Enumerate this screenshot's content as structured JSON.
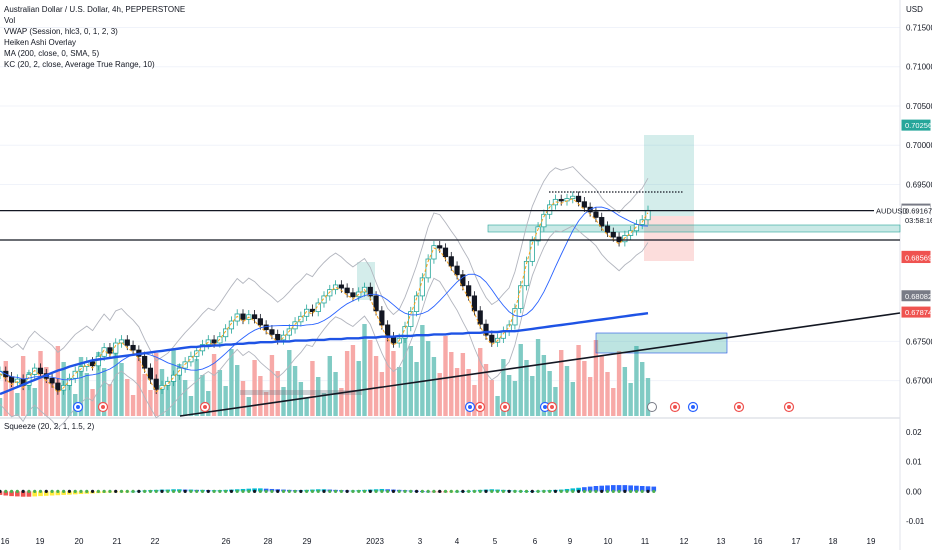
{
  "header": {
    "title": "Australian Dollar / U.S. Dollar, 4h, PEPPERSTONE",
    "indicators": [
      "Vol",
      "VWAP (Session, hlc3, 0, 1, 2, 3)",
      "Heiken Ashi Overlay",
      "MA (200, close, 0, SMA, 5)",
      "KC (20, 2, close, Average True Range, 10)"
    ]
  },
  "squeeze": {
    "title": "Squeeze (20, 2, 1, 1.5, 2)"
  },
  "colors": {
    "up": "#26a69a",
    "down": "#ef5350",
    "ma": "#1e53e5",
    "vwap": "#f7a21b",
    "kc": "#b2b5be",
    "vol_up": "#80cbc4",
    "vol_down": "#f7a9a7"
  },
  "chart_data": {
    "type": "candlestick",
    "currency": "USD",
    "symbol": "AUDUSD",
    "price_ticks": [
      "0.71500",
      "0.71000",
      "0.70500",
      "0.70000",
      "0.69500",
      "0.67500",
      "0.67000"
    ],
    "price_tick_values": [
      0.715,
      0.71,
      0.705,
      0.7,
      0.695,
      0.675,
      0.67
    ],
    "ylim": [
      0.6655,
      0.7185
    ],
    "price_labels": [
      {
        "text": "0.70256",
        "value": 0.70256,
        "color": "#26a69a"
      },
      {
        "text": "0.69186",
        "value": 0.69186,
        "color": "#787b86"
      },
      {
        "text": "0.69167",
        "value": 0.69167,
        "color": "#ffffff"
      },
      {
        "text": "03:58:16",
        "value": 0.6905,
        "color": "#ffffff"
      },
      {
        "text": "0.68584",
        "value": 0.68584,
        "color": "#ef5350"
      },
      {
        "text": "0.68569",
        "value": 0.68569,
        "color": "#ef5350"
      },
      {
        "text": "0.68082",
        "value": 0.68082,
        "color": "#787b86"
      },
      {
        "text": "0.67874",
        "value": 0.67874,
        "color": "#ef5350"
      }
    ],
    "symbol_tag": "AUDUSD",
    "x_ticks": [
      "16",
      "19",
      "20",
      "21",
      "22",
      "26",
      "28",
      "29",
      "2023",
      "3",
      "4",
      "5",
      "6",
      "9",
      "10",
      "11",
      "12",
      "13",
      "16",
      "17",
      "18",
      "19"
    ],
    "close": [
      0.6712,
      0.6705,
      0.6698,
      0.6702,
      0.6694,
      0.6708,
      0.6716,
      0.6709,
      0.6703,
      0.6697,
      0.6688,
      0.6694,
      0.6703,
      0.6712,
      0.6718,
      0.6724,
      0.6719,
      0.6731,
      0.6742,
      0.6735,
      0.6748,
      0.6752,
      0.6745,
      0.6739,
      0.6731,
      0.6716,
      0.6702,
      0.6689,
      0.6694,
      0.6699,
      0.6707,
      0.6716,
      0.6724,
      0.6731,
      0.6738,
      0.6746,
      0.6752,
      0.6748,
      0.6756,
      0.6766,
      0.6776,
      0.6785,
      0.6778,
      0.6784,
      0.6779,
      0.6771,
      0.6765,
      0.6759,
      0.6752,
      0.6758,
      0.6766,
      0.6775,
      0.6782,
      0.6791,
      0.6788,
      0.6799,
      0.6808,
      0.6816,
      0.6822,
      0.6818,
      0.6812,
      0.6807,
      0.6813,
      0.6819,
      0.6808,
      0.6789,
      0.6771,
      0.6756,
      0.6748,
      0.6754,
      0.6769,
      0.6788,
      0.6808,
      0.6831,
      0.6855,
      0.6872,
      0.6869,
      0.6858,
      0.6846,
      0.6835,
      0.6821,
      0.6808,
      0.6789,
      0.6772,
      0.6758,
      0.6749,
      0.6754,
      0.6763,
      0.6771,
      0.6792,
      0.6821,
      0.6852,
      0.6878,
      0.6896,
      0.6912,
      0.6924,
      0.6931,
      0.6929,
      0.6932,
      0.6935,
      0.6928,
      0.6921,
      0.6915,
      0.6908,
      0.6897,
      0.6889,
      0.6883,
      0.6877,
      0.6885,
      0.6891,
      0.6899,
      0.6905,
      0.6917
    ],
    "ma200": [
      0.6683,
      0.6686,
      0.6689,
      0.6692,
      0.6695,
      0.6698,
      0.6701,
      0.6704,
      0.6707,
      0.671,
      0.6713,
      0.6715,
      0.6718,
      0.672,
      0.6722,
      0.6724,
      0.6726,
      0.6727,
      0.6728,
      0.6729,
      0.673,
      0.6731,
      0.6732,
      0.6733,
      0.6734,
      0.6735,
      0.6736,
      0.6737,
      0.6738,
      0.6739,
      0.674,
      0.6741,
      0.6742,
      0.6743,
      0.6743,
      0.6744,
      0.6744,
      0.6745,
      0.6745,
      0.6746,
      0.6746,
      0.6747,
      0.6747,
      0.6748,
      0.6748,
      0.6749,
      0.6749,
      0.6749,
      0.675,
      0.675,
      0.675,
      0.6751,
      0.6751,
      0.6751,
      0.6752,
      0.6752,
      0.6752,
      0.6753,
      0.6753,
      0.6753,
      0.6754,
      0.6754,
      0.6754,
      0.6755,
      0.6755,
      0.6755,
      0.6756,
      0.6756,
      0.6756,
      0.6757,
      0.6757,
      0.6757,
      0.6758,
      0.6758,
      0.6758,
      0.6759,
      0.6759,
      0.6759,
      0.676,
      0.676,
      0.676,
      0.6761,
      0.6761,
      0.6761,
      0.6762,
      0.6762,
      0.6762,
      0.6763,
      0.6763,
      0.6763,
      0.6764,
      0.6765,
      0.6766,
      0.6767,
      0.6768,
      0.6769,
      0.677,
      0.6771,
      0.6772,
      0.6773,
      0.6774,
      0.6775,
      0.6776,
      0.6777,
      0.6778,
      0.6779,
      0.678,
      0.6781,
      0.6782,
      0.6783,
      0.6784,
      0.6785,
      0.6786
    ],
    "squeeze": [
      -0.0012,
      -0.0014,
      -0.0016,
      -0.0017,
      -0.0018,
      -0.0018,
      -0.0017,
      -0.0016,
      -0.0015,
      -0.0014,
      -0.0013,
      -0.0012,
      -0.0011,
      -0.001,
      -0.0009,
      -0.0008,
      -0.0007,
      -0.0006,
      -0.0005,
      -0.0004,
      -0.0003,
      -0.0002,
      -0.0001,
      0.0,
      0.0002,
      0.0003,
      0.0004,
      0.0005,
      0.0006,
      0.0006,
      0.0007,
      0.0007,
      0.0006,
      0.0006,
      0.0005,
      0.0005,
      0.0004,
      0.0004,
      0.0004,
      0.0005,
      0.0006,
      0.0007,
      0.0008,
      0.0009,
      0.001,
      0.001,
      0.0009,
      0.0008,
      0.0007,
      0.0006,
      0.0005,
      0.0004,
      0.0004,
      0.0005,
      0.0006,
      0.0007,
      0.0007,
      0.0006,
      0.0005,
      0.0004,
      0.0003,
      0.0003,
      0.0004,
      0.0005,
      0.0006,
      0.0007,
      0.0008,
      0.0007,
      0.0006,
      0.0005,
      0.0004,
      0.0003,
      0.0002,
      0.0001,
      0.0,
      -0.0001,
      -0.0002,
      -0.0002,
      -0.0001,
      0.0,
      0.0001,
      0.0002,
      0.0003,
      0.0005,
      0.0006,
      0.0007,
      0.0006,
      0.0005,
      0.0004,
      0.0003,
      0.0002,
      0.0001,
      0.0001,
      0.0002,
      0.0003,
      0.0004,
      0.0005,
      0.0006,
      0.0008,
      0.001,
      0.0012,
      0.0014,
      0.0016,
      0.0018,
      0.0019,
      0.002,
      0.0021,
      0.0021,
      0.0021,
      0.002,
      0.0019,
      0.0018,
      0.0017,
      0.0016
    ],
    "squeeze_ticks": [
      "0.02",
      "0.01",
      "0.00",
      "-0.01"
    ],
    "squeeze_tick_values": [
      0.02,
      0.01,
      0.0,
      -0.01
    ],
    "squeeze_ylim": [
      -0.013,
      0.024
    ]
  }
}
